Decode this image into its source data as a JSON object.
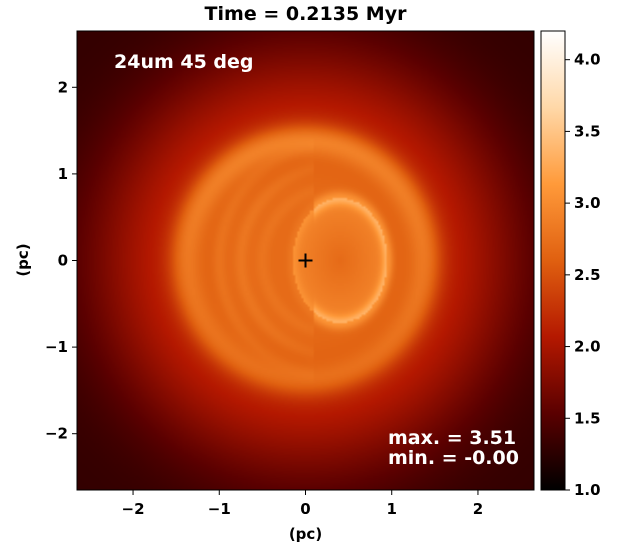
{
  "chart_data": {
    "type": "heatmap",
    "title": "Time = 0.2135 Myr",
    "xlabel": "(pc)",
    "ylabel": "(pc)",
    "xlim": [
      -2.65,
      2.65
    ],
    "ylim": [
      -2.65,
      2.65
    ],
    "x_ticks": [
      -2,
      -1,
      0,
      1,
      2
    ],
    "x_tick_labels": [
      "−2",
      "−1",
      "0",
      "1",
      "2"
    ],
    "y_ticks": [
      -2,
      -1,
      0,
      1,
      2
    ],
    "y_tick_labels": [
      "−2",
      "−1",
      "0",
      "1",
      "2"
    ],
    "annotation_top_left": "24um 45 deg",
    "annotation_max": "max. = 3.51",
    "annotation_min": "min. = -0.00",
    "center_marker": {
      "x": 0,
      "y": 0,
      "symbol": "+"
    },
    "colorbar": {
      "range": [
        1.0,
        4.2
      ],
      "ticks": [
        1.0,
        1.5,
        2.0,
        2.5,
        3.0,
        3.5,
        4.0
      ],
      "tick_labels": [
        "1.0",
        "1.5",
        "2.0",
        "2.5",
        "3.0",
        "3.5",
        "4.0"
      ],
      "colormap": "gist_heat",
      "colors": [
        "#000000",
        "#5a0000",
        "#b41800",
        "#e06010",
        "#ff9a3a",
        "#ffd8a8",
        "#ffffff"
      ]
    },
    "features": {
      "background_level": 1.3,
      "diffuse_disk": {
        "center": [
          0.0,
          0.0
        ],
        "radius": 2.4,
        "level": 2.35
      },
      "outer_shell": {
        "center": [
          0.0,
          0.0
        ],
        "radius": 1.4,
        "level": 2.85
      },
      "inner_ring": {
        "center": [
          0.4,
          0.0
        ],
        "rx": 0.55,
        "ry": 0.72,
        "level": 3.25
      },
      "inner_fill": {
        "center": [
          0.35,
          0.0
        ],
        "level": 2.95
      },
      "left_arcs": [
        {
          "x": -1.0,
          "level": 2.55
        },
        {
          "x": -0.75,
          "level": 2.55
        },
        {
          "x": -0.5,
          "level": 2.5
        }
      ]
    }
  }
}
